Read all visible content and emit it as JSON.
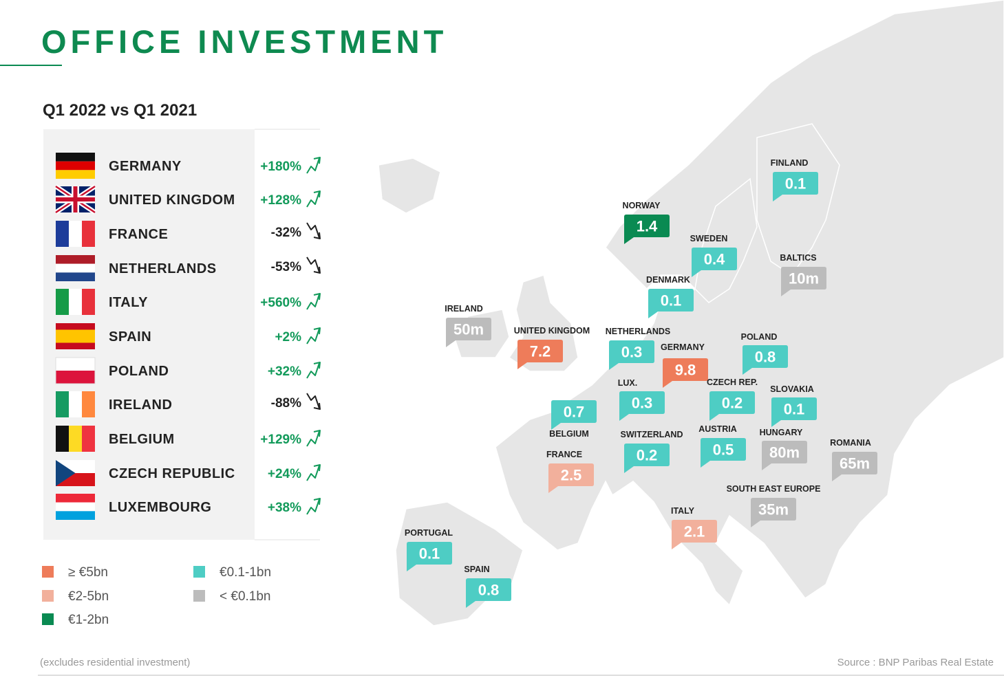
{
  "title": "OFFICE INVESTMENT",
  "subtitle": "Q1 2022 vs Q1 2021",
  "table": {
    "rows": [
      {
        "country": "GERMANY",
        "change": "+180%"
      },
      {
        "country": "UNITED KINGDOM",
        "change": "+128%"
      },
      {
        "country": "FRANCE",
        "change": "-32%"
      },
      {
        "country": "NETHERLANDS",
        "change": "-53%"
      },
      {
        "country": "ITALY",
        "change": "+560%"
      },
      {
        "country": "SPAIN",
        "change": "+2%"
      },
      {
        "country": "POLAND",
        "change": "+32%"
      },
      {
        "country": "IRELAND",
        "change": "-88%"
      },
      {
        "country": "BELGIUM",
        "change": "+129%"
      },
      {
        "country": "CZECH REPUBLIC",
        "change": "+24%"
      },
      {
        "country": "LUXEMBOURG",
        "change": "+38%"
      }
    ]
  },
  "legend": {
    "items": [
      {
        "label": "≥ €5bn",
        "color": "#ee7c5a"
      },
      {
        "label": "€2-5bn",
        "color": "#f2b09c"
      },
      {
        "label": "€1-2bn",
        "color": "#0a8a52"
      },
      {
        "label": "€0.1-1bn",
        "color": "#4ecdc4"
      },
      {
        "label": "< €0.1bn",
        "color": "#bcbcbc"
      }
    ]
  },
  "map": {
    "labels": [
      {
        "name": "FINLAND",
        "value": "0.1",
        "color": "#4ecdc4"
      },
      {
        "name": "NORWAY",
        "value": "1.4",
        "color": "#0a8a52"
      },
      {
        "name": "SWEDEN",
        "value": "0.4",
        "color": "#4ecdc4"
      },
      {
        "name": "BALTICS",
        "value": "10m",
        "color": "#bcbcbc"
      },
      {
        "name": "DENMARK",
        "value": "0.1",
        "color": "#4ecdc4"
      },
      {
        "name": "IRELAND",
        "value": "50m",
        "color": "#bcbcbc"
      },
      {
        "name": "UNITED KINGDOM",
        "value": "7.2",
        "color": "#ee7c5a"
      },
      {
        "name": "NETHERLANDS",
        "value": "0.3",
        "color": "#4ecdc4"
      },
      {
        "name": "GERMANY",
        "value": "9.8",
        "color": "#ee7c5a"
      },
      {
        "name": "POLAND",
        "value": "0.8",
        "color": "#4ecdc4"
      },
      {
        "name": "LUX.",
        "value": "0.3",
        "color": "#4ecdc4"
      },
      {
        "name": "CZECH REP.",
        "value": "0.2",
        "color": "#4ecdc4"
      },
      {
        "name": "SLOVAKIA",
        "value": "0.1",
        "color": "#4ecdc4"
      },
      {
        "name": "BELGIUM",
        "value": "0.7",
        "color": "#4ecdc4"
      },
      {
        "name": "FRANCE",
        "value": "2.5",
        "color": "#f2b09c"
      },
      {
        "name": "SWITZERLAND",
        "value": "0.2",
        "color": "#4ecdc4"
      },
      {
        "name": "AUSTRIA",
        "value": "0.5",
        "color": "#4ecdc4"
      },
      {
        "name": "HUNGARY",
        "value": "80m",
        "color": "#bcbcbc"
      },
      {
        "name": "ROMANIA",
        "value": "65m",
        "color": "#bcbcbc"
      },
      {
        "name": "SOUTH EAST EUROPE",
        "value": "35m",
        "color": "#bcbcbc"
      },
      {
        "name": "ITALY",
        "value": "2.1",
        "color": "#f2b09c"
      },
      {
        "name": "PORTUGAL",
        "value": "0.1",
        "color": "#4ecdc4"
      },
      {
        "name": "SPAIN",
        "value": "0.8",
        "color": "#4ecdc4"
      }
    ]
  },
  "footnote": "(excludes residential investment)",
  "source": "Source : BNP Paribas Real Estate"
}
